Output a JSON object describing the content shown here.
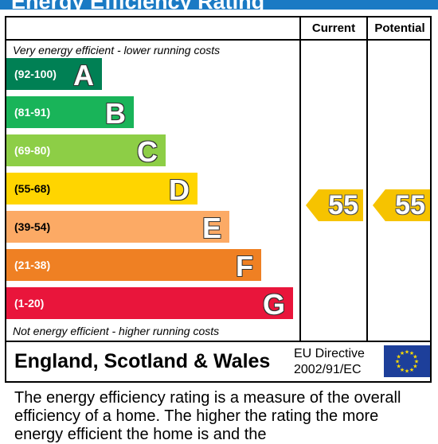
{
  "title": "Energy Efficiency Rating",
  "columns": {
    "current": "Current",
    "potential": "Potential"
  },
  "top_note": "Very energy efficient - lower running costs",
  "bottom_note": "Not energy efficient - higher running costs",
  "bands": [
    {
      "range": "(92-100)",
      "letter": "A",
      "color": "#008054"
    },
    {
      "range": "(81-91)",
      "letter": "B",
      "color": "#19b459"
    },
    {
      "range": "(69-80)",
      "letter": "C",
      "color": "#8dce46"
    },
    {
      "range": "(55-68)",
      "letter": "D",
      "color": "#ffd500"
    },
    {
      "range": "(39-54)",
      "letter": "E",
      "color": "#fcaa65"
    },
    {
      "range": "(21-38)",
      "letter": "F",
      "color": "#ef8023"
    },
    {
      "range": "(1-20)",
      "letter": "G",
      "color": "#e9153b"
    }
  ],
  "current_rating": "55",
  "potential_rating": "55",
  "region": "England, Scotland & Wales",
  "directive": {
    "line1": "EU Directive",
    "line2": "2002/91/EC"
  },
  "caption": "The energy efficiency rating is a measure of the overall efficiency of a home. The higher the rating the more energy efficient the home is and the"
}
